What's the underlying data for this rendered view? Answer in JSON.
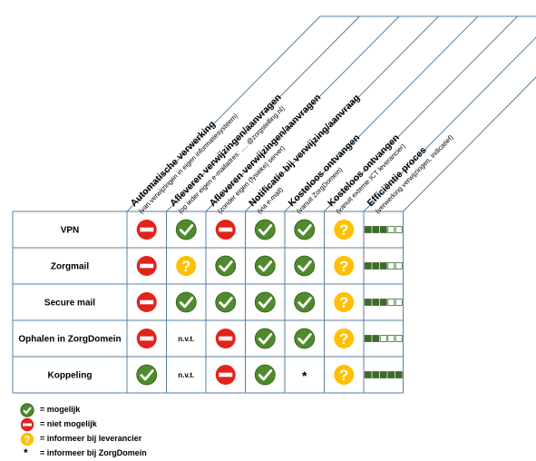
{
  "columns": [
    {
      "title": "Automatische verwerking",
      "subtitle": "(van verwijzingen in eigen informatiesysteem)"
    },
    {
      "title": "Afleveren verwijzingen/aanvragen",
      "subtitle": "(op ieder eigen e-mailadres: …. @zorgstelling.nl)"
    },
    {
      "title": "Afleveren verwijzingen/aanvragen",
      "subtitle": "(zonder eigen (fysieke) server)"
    },
    {
      "title": "Notificatie bij verwijzing/aanvraag",
      "subtitle": "(via e-mail)"
    },
    {
      "title": "Kosteloos ontvangen",
      "subtitle": "(vanuit ZorgDomein)"
    },
    {
      "title": "Kosteloos ontvangen",
      "subtitle": "(vanuit externe ICT leverancier)"
    },
    {
      "title": "Efficiëntie proces",
      "subtitle": "(verwerking verwijzingen, indicatief)"
    }
  ],
  "rows": [
    {
      "label": "VPN",
      "cells": [
        "no",
        "yes",
        "no",
        "yes",
        "yes",
        "info_vendor"
      ],
      "efficiency": 3
    },
    {
      "label": "Zorgmail",
      "cells": [
        "no",
        "info_vendor",
        "yes",
        "yes",
        "yes",
        "info_vendor"
      ],
      "efficiency": 3
    },
    {
      "label": "Secure mail",
      "cells": [
        "no",
        "yes",
        "yes",
        "yes",
        "yes",
        "info_vendor"
      ],
      "efficiency": 3
    },
    {
      "label": "Ophalen in ZorgDomein",
      "cells": [
        "no",
        "n.v.t.",
        "no",
        "yes",
        "yes",
        "info_vendor"
      ],
      "efficiency": 2
    },
    {
      "label": "Koppeling",
      "cells": [
        "yes",
        "n.v.t.",
        "no",
        "yes",
        "*",
        "info_vendor"
      ],
      "efficiency": 5
    }
  ],
  "efficiency_max": 5,
  "legend": [
    {
      "icon": "check-icon",
      "text": "= mogelijk"
    },
    {
      "icon": "no-entry-icon",
      "text": "= niet mogelijk"
    },
    {
      "icon": "question-icon",
      "text": "= informeer bij leverancier"
    },
    {
      "icon": "asterisk",
      "symbol": "*",
      "text": "= informeer bij ZorgDomein"
    }
  ],
  "colors": {
    "yes": "#4f8a2c",
    "no": "#e2231a",
    "info": "#ffc000",
    "efficiency": "#3e6b2a",
    "grid": "#5a7f9c"
  }
}
